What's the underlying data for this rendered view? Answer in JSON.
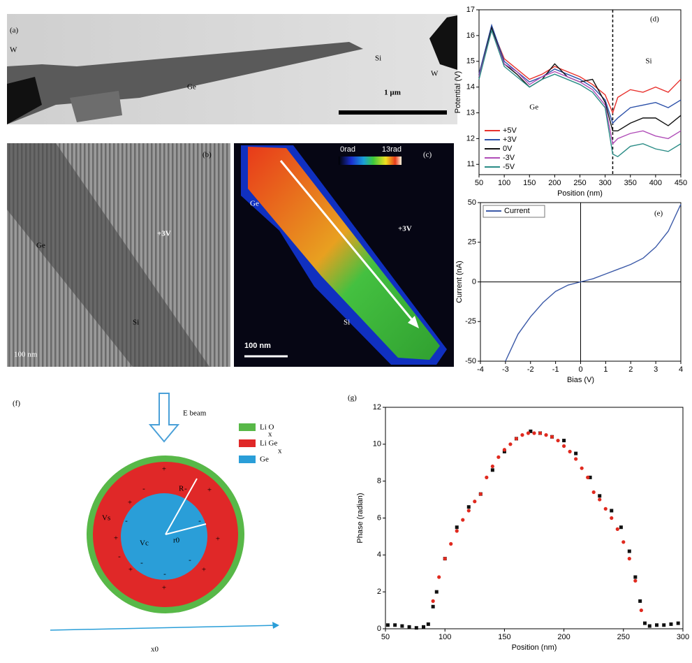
{
  "images": {
    "a": {
      "panel_label": "(a)",
      "left_tip": "W",
      "wire": "Ge",
      "end": "Si",
      "right_tip": "W",
      "scale_bar": "1 µm"
    },
    "b": {
      "panel_label": "(b)",
      "top": "Ge",
      "bias": "+3V",
      "bottom": "Si",
      "scale_bar": "100 nm"
    },
    "c": {
      "panel_label": "(c)",
      "top": "Ge",
      "bias": "+3V",
      "bottom": "Si",
      "scale_bar": "100 nm",
      "colorbar_min": "0rad",
      "colorbar_max": "13rad"
    }
  },
  "diagram": {
    "panel_label": "(f)",
    "beam": "E beam",
    "legend": [
      "Li O",
      "Li Ge",
      "Ge"
    ],
    "subscript": "x",
    "radius": "R",
    "shell_potential": "Vs",
    "core_potential": "Vc",
    "core_radius": "r0",
    "axis": "x0",
    "plus": "+",
    "minus": "-"
  },
  "chart_data": [
    {
      "type": "line",
      "panel_label": "(d)",
      "region_labels": [
        "Ge",
        "Si"
      ],
      "x_label": "Position (nm)",
      "y_label": "Potential (V)",
      "xlim": [
        50,
        450
      ],
      "ylim": [
        10.6,
        17
      ],
      "xticks": [
        50,
        100,
        150,
        200,
        250,
        300,
        350,
        400,
        450
      ],
      "yticks": [
        11,
        12,
        13,
        14,
        15,
        16,
        17
      ],
      "vline": 315,
      "legend": "lower left",
      "x": [
        50,
        75,
        100,
        125,
        150,
        175,
        200,
        225,
        250,
        275,
        300,
        315,
        325,
        350,
        375,
        400,
        425,
        450
      ],
      "series": [
        {
          "name": "+5V",
          "color": "#e8322e",
          "values": [
            14.5,
            16.3,
            15.1,
            14.7,
            14.3,
            14.5,
            14.8,
            14.6,
            14.4,
            14.1,
            13.7,
            13.0,
            13.6,
            13.9,
            13.8,
            14.0,
            13.8,
            14.3
          ]
        },
        {
          "name": "+3V",
          "color": "#2a4fa8",
          "values": [
            14.5,
            16.4,
            15.0,
            14.6,
            14.2,
            14.4,
            14.7,
            14.5,
            14.3,
            14.0,
            13.5,
            12.6,
            12.8,
            13.2,
            13.3,
            13.4,
            13.2,
            13.5
          ]
        },
        {
          "name": "0V",
          "color": "#111111",
          "values": [
            14.4,
            16.3,
            14.9,
            14.5,
            14.0,
            14.3,
            14.9,
            14.4,
            14.2,
            14.3,
            13.4,
            12.3,
            12.3,
            12.6,
            12.8,
            12.8,
            12.5,
            12.9
          ]
        },
        {
          "name": "-3V",
          "color": "#b04db8",
          "values": [
            14.4,
            16.2,
            14.9,
            14.6,
            14.1,
            14.4,
            14.6,
            14.4,
            14.2,
            13.9,
            13.3,
            11.8,
            12.0,
            12.2,
            12.3,
            12.1,
            12.0,
            12.3
          ]
        },
        {
          "name": "-5V",
          "color": "#2a8c86",
          "values": [
            14.3,
            16.2,
            14.8,
            14.4,
            14.0,
            14.3,
            14.5,
            14.3,
            14.1,
            13.8,
            13.2,
            11.4,
            11.3,
            11.7,
            11.8,
            11.6,
            11.5,
            11.8
          ]
        }
      ]
    },
    {
      "type": "line",
      "panel_label": "(e)",
      "x_label": "Bias (V)",
      "y_label": "Current (nA)",
      "xlim": [
        -4,
        4
      ],
      "ylim": [
        -50,
        50
      ],
      "xticks": [
        -4,
        -3,
        -2,
        -1,
        0,
        1,
        2,
        3,
        4
      ],
      "yticks": [
        -50,
        -25,
        0,
        25,
        50
      ],
      "zero_lines": true,
      "legend": "upper left",
      "x": [
        -3,
        -2.5,
        -2,
        -1.5,
        -1,
        -0.5,
        0,
        0.5,
        1,
        1.5,
        2,
        2.5,
        3,
        3.5,
        4
      ],
      "series": [
        {
          "name": "Current",
          "color": "#3c5aa8",
          "values": [
            -50,
            -33,
            -22,
            -13,
            -6,
            -2,
            0,
            2,
            5,
            8,
            11,
            15,
            22,
            32,
            49
          ]
        }
      ]
    },
    {
      "type": "scatter",
      "panel_label": "(g)",
      "x_label": "Position (nm)",
      "y_label": "Phase (radian)",
      "xlim": [
        50,
        300
      ],
      "ylim": [
        0,
        12
      ],
      "xticks": [
        50,
        100,
        150,
        200,
        250,
        300
      ],
      "yticks": [
        0,
        2,
        4,
        6,
        8,
        10,
        12
      ],
      "series": [
        {
          "color": "#111111",
          "marker": "square",
          "x": [
            52,
            58,
            64,
            70,
            76,
            82,
            86,
            90,
            93,
            100,
            110,
            120,
            130,
            140,
            150,
            160,
            172,
            180,
            190,
            200,
            210,
            222,
            230,
            240,
            248,
            255,
            260,
            264,
            268,
            272,
            278,
            284,
            290,
            296
          ],
          "values": [
            0.2,
            0.2,
            0.15,
            0.1,
            0.05,
            0.1,
            0.25,
            1.2,
            2.0,
            3.8,
            5.5,
            6.6,
            7.3,
            8.6,
            9.6,
            10.3,
            10.7,
            10.6,
            10.4,
            10.2,
            9.5,
            8.2,
            7.2,
            6.4,
            5.5,
            4.2,
            2.8,
            1.5,
            0.3,
            0.15,
            0.2,
            0.2,
            0.25,
            0.3
          ]
        },
        {
          "color": "#e02a1f",
          "marker": "circle",
          "x": [
            90,
            95,
            100,
            105,
            110,
            115,
            120,
            125,
            130,
            135,
            140,
            145,
            150,
            155,
            160,
            165,
            170,
            175,
            180,
            185,
            190,
            195,
            200,
            205,
            210,
            215,
            220,
            225,
            230,
            235,
            240,
            245,
            250,
            255,
            260,
            265
          ],
          "values": [
            1.5,
            2.8,
            3.8,
            4.6,
            5.3,
            5.9,
            6.4,
            6.9,
            7.3,
            8.2,
            8.8,
            9.3,
            9.7,
            10.0,
            10.3,
            10.5,
            10.6,
            10.6,
            10.6,
            10.5,
            10.4,
            10.2,
            9.9,
            9.6,
            9.2,
            8.7,
            8.2,
            7.4,
            7.0,
            6.5,
            6.0,
            5.4,
            4.7,
            3.8,
            2.6,
            1.0
          ]
        }
      ]
    }
  ]
}
